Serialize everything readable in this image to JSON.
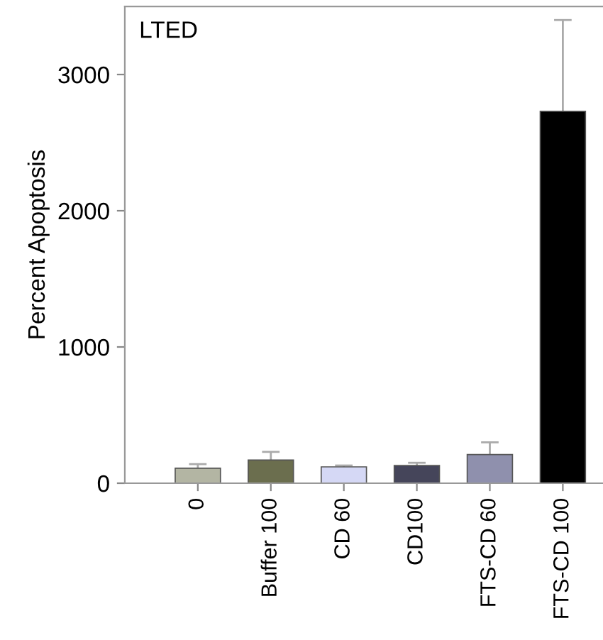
{
  "chart_data": {
    "type": "bar",
    "ylabel": "Percent Apoptosis",
    "annotations": [
      "LTED"
    ],
    "categories": [
      "0",
      "Buffer 100",
      "CD 60",
      "CD100",
      "FTS-CD 60",
      "FTS-CD 100"
    ],
    "values": [
      110,
      170,
      120,
      130,
      210,
      2730
    ],
    "errors": [
      [
        110,
        140
      ],
      [
        170,
        230
      ],
      [
        120,
        130
      ],
      [
        130,
        150
      ],
      [
        210,
        300
      ],
      [
        2730,
        3400
      ]
    ],
    "colors": [
      "#b3b5a3",
      "#6b6e4e",
      "#d5d8f5",
      "#45455a",
      "#8f90ad",
      "#000000"
    ],
    "ylim": [
      0,
      3500
    ],
    "yticks": [
      0,
      1000,
      2000,
      3000
    ],
    "grid": false,
    "legend": false
  }
}
